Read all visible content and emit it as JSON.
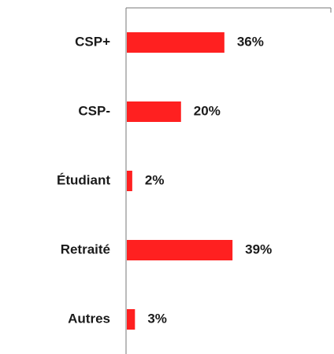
{
  "chart_data": {
    "type": "bar",
    "orientation": "horizontal",
    "categories": [
      "CSP+",
      "CSP-",
      "Étudiant",
      "Retraité",
      "Autres"
    ],
    "values": [
      36,
      20,
      2,
      39,
      3
    ],
    "value_labels": [
      "36%",
      "20%",
      "2%",
      "39%",
      "3%"
    ],
    "color": "#ff2020"
  }
}
